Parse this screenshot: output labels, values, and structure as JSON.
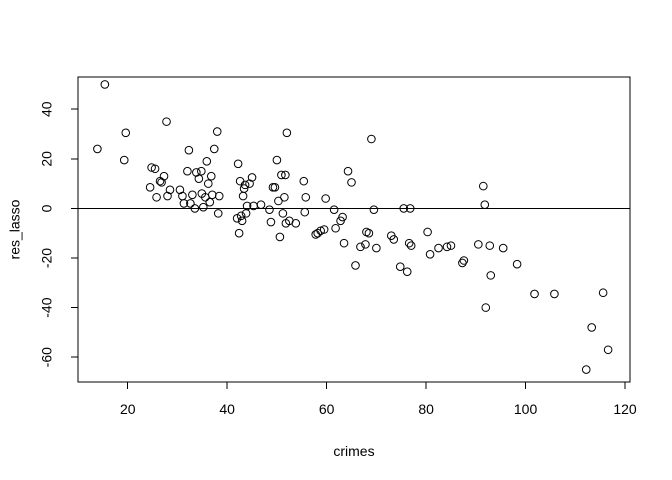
{
  "chart_data": {
    "type": "scatter",
    "title": "",
    "xlabel": "crimes",
    "ylabel": "res_lasso",
    "xlim": [
      10,
      121
    ],
    "ylim": [
      -70,
      53
    ],
    "x_ticks": [
      20,
      40,
      60,
      80,
      100,
      120
    ],
    "y_ticks": [
      -60,
      -40,
      -20,
      0,
      20,
      40
    ],
    "x_tick_labels": [
      "20",
      "40",
      "60",
      "80",
      "100",
      "120"
    ],
    "y_tick_labels": [
      "-60",
      "-40",
      "-20",
      "0",
      "20",
      "40"
    ],
    "grid": false,
    "reference_lines": [
      {
        "orientation": "horizontal",
        "y": 0
      }
    ],
    "series": [
      {
        "marker": "open-circle",
        "color": "#000000",
        "points": [
          {
            "x": 13.9,
            "y": 24
          },
          {
            "x": 15.4,
            "y": 50
          },
          {
            "x": 19.3,
            "y": 19.5
          },
          {
            "x": 19.6,
            "y": 30.5
          },
          {
            "x": 24.5,
            "y": 8.5
          },
          {
            "x": 24.8,
            "y": 16.5
          },
          {
            "x": 25.5,
            "y": 16
          },
          {
            "x": 25.8,
            "y": 4.5
          },
          {
            "x": 26.5,
            "y": 11
          },
          {
            "x": 26.8,
            "y": 10.5
          },
          {
            "x": 27.3,
            "y": 13
          },
          {
            "x": 27.8,
            "y": 35
          },
          {
            "x": 28.0,
            "y": 5
          },
          {
            "x": 28.5,
            "y": 7.5
          },
          {
            "x": 30.5,
            "y": 7.5
          },
          {
            "x": 31.0,
            "y": 5
          },
          {
            "x": 31.3,
            "y": 2
          },
          {
            "x": 32.0,
            "y": 15
          },
          {
            "x": 32.3,
            "y": 23.5
          },
          {
            "x": 32.6,
            "y": 2
          },
          {
            "x": 33.0,
            "y": 5.5
          },
          {
            "x": 33.5,
            "y": 0
          },
          {
            "x": 33.8,
            "y": 14.5
          },
          {
            "x": 34.3,
            "y": 12
          },
          {
            "x": 34.8,
            "y": 15
          },
          {
            "x": 34.9,
            "y": 6
          },
          {
            "x": 35.2,
            "y": 0.5
          },
          {
            "x": 35.6,
            "y": 4.5
          },
          {
            "x": 35.9,
            "y": 19
          },
          {
            "x": 36.2,
            "y": 10
          },
          {
            "x": 36.5,
            "y": 2.5
          },
          {
            "x": 36.8,
            "y": 13
          },
          {
            "x": 37.0,
            "y": 5.5
          },
          {
            "x": 37.4,
            "y": 24
          },
          {
            "x": 38.0,
            "y": 31
          },
          {
            "x": 38.2,
            "y": -2
          },
          {
            "x": 38.4,
            "y": 5
          },
          {
            "x": 42.0,
            "y": -4
          },
          {
            "x": 42.2,
            "y": 18
          },
          {
            "x": 42.4,
            "y": -10
          },
          {
            "x": 42.6,
            "y": 11
          },
          {
            "x": 42.8,
            "y": -3
          },
          {
            "x": 43.0,
            "y": -5
          },
          {
            "x": 43.2,
            "y": 5
          },
          {
            "x": 43.4,
            "y": 8
          },
          {
            "x": 43.6,
            "y": 9.5
          },
          {
            "x": 43.8,
            "y": -2
          },
          {
            "x": 44.0,
            "y": 1
          },
          {
            "x": 44.5,
            "y": 10
          },
          {
            "x": 45.0,
            "y": 12.5
          },
          {
            "x": 45.3,
            "y": 1
          },
          {
            "x": 46.8,
            "y": 1.5
          },
          {
            "x": 48.5,
            "y": -0.5
          },
          {
            "x": 48.8,
            "y": -5.5
          },
          {
            "x": 49.2,
            "y": 8.5
          },
          {
            "x": 49.6,
            "y": 8.5
          },
          {
            "x": 50.0,
            "y": 19.5
          },
          {
            "x": 50.3,
            "y": 3
          },
          {
            "x": 50.6,
            "y": -11.5
          },
          {
            "x": 50.9,
            "y": 13.5
          },
          {
            "x": 51.2,
            "y": -2
          },
          {
            "x": 51.5,
            "y": 4.5
          },
          {
            "x": 51.7,
            "y": 13.5
          },
          {
            "x": 51.8,
            "y": -6
          },
          {
            "x": 52.0,
            "y": 30.5
          },
          {
            "x": 52.5,
            "y": -5
          },
          {
            "x": 53.8,
            "y": -6
          },
          {
            "x": 55.4,
            "y": 11
          },
          {
            "x": 55.6,
            "y": -1.5
          },
          {
            "x": 55.8,
            "y": 4.5
          },
          {
            "x": 57.8,
            "y": -10.5
          },
          {
            "x": 58.2,
            "y": -10
          },
          {
            "x": 58.8,
            "y": -9
          },
          {
            "x": 59.5,
            "y": -8.5
          },
          {
            "x": 59.8,
            "y": 4
          },
          {
            "x": 61.5,
            "y": -0.5
          },
          {
            "x": 61.8,
            "y": -8
          },
          {
            "x": 62.8,
            "y": -5
          },
          {
            "x": 63.2,
            "y": -3.5
          },
          {
            "x": 63.5,
            "y": -14
          },
          {
            "x": 64.3,
            "y": 15
          },
          {
            "x": 65.0,
            "y": 10.5
          },
          {
            "x": 65.8,
            "y": -23
          },
          {
            "x": 66.8,
            "y": -15.5
          },
          {
            "x": 67.8,
            "y": -14.5
          },
          {
            "x": 68.0,
            "y": -9.5
          },
          {
            "x": 68.5,
            "y": -10
          },
          {
            "x": 69.0,
            "y": 28
          },
          {
            "x": 69.5,
            "y": -0.5
          },
          {
            "x": 70.0,
            "y": -16
          },
          {
            "x": 73.0,
            "y": -11
          },
          {
            "x": 73.5,
            "y": -12.5
          },
          {
            "x": 74.8,
            "y": -23.5
          },
          {
            "x": 75.5,
            "y": 0
          },
          {
            "x": 76.2,
            "y": -25.5
          },
          {
            "x": 76.6,
            "y": -14
          },
          {
            "x": 76.8,
            "y": 0
          },
          {
            "x": 77.0,
            "y": -15
          },
          {
            "x": 80.3,
            "y": -9.5
          },
          {
            "x": 80.8,
            "y": -18.5
          },
          {
            "x": 82.5,
            "y": -16
          },
          {
            "x": 84.2,
            "y": -15.5
          },
          {
            "x": 85.0,
            "y": -15
          },
          {
            "x": 87.3,
            "y": -22
          },
          {
            "x": 87.6,
            "y": -21
          },
          {
            "x": 90.5,
            "y": -14.5
          },
          {
            "x": 91.5,
            "y": 9
          },
          {
            "x": 91.8,
            "y": 1.5
          },
          {
            "x": 92.0,
            "y": -40
          },
          {
            "x": 92.8,
            "y": -15
          },
          {
            "x": 93.0,
            "y": -27
          },
          {
            "x": 95.5,
            "y": -16
          },
          {
            "x": 98.3,
            "y": -22.5
          },
          {
            "x": 101.8,
            "y": -34.5
          },
          {
            "x": 105.8,
            "y": -34.5
          },
          {
            "x": 112.2,
            "y": -65
          },
          {
            "x": 113.3,
            "y": -48
          },
          {
            "x": 115.6,
            "y": -34
          },
          {
            "x": 116.6,
            "y": -57
          }
        ]
      }
    ]
  }
}
